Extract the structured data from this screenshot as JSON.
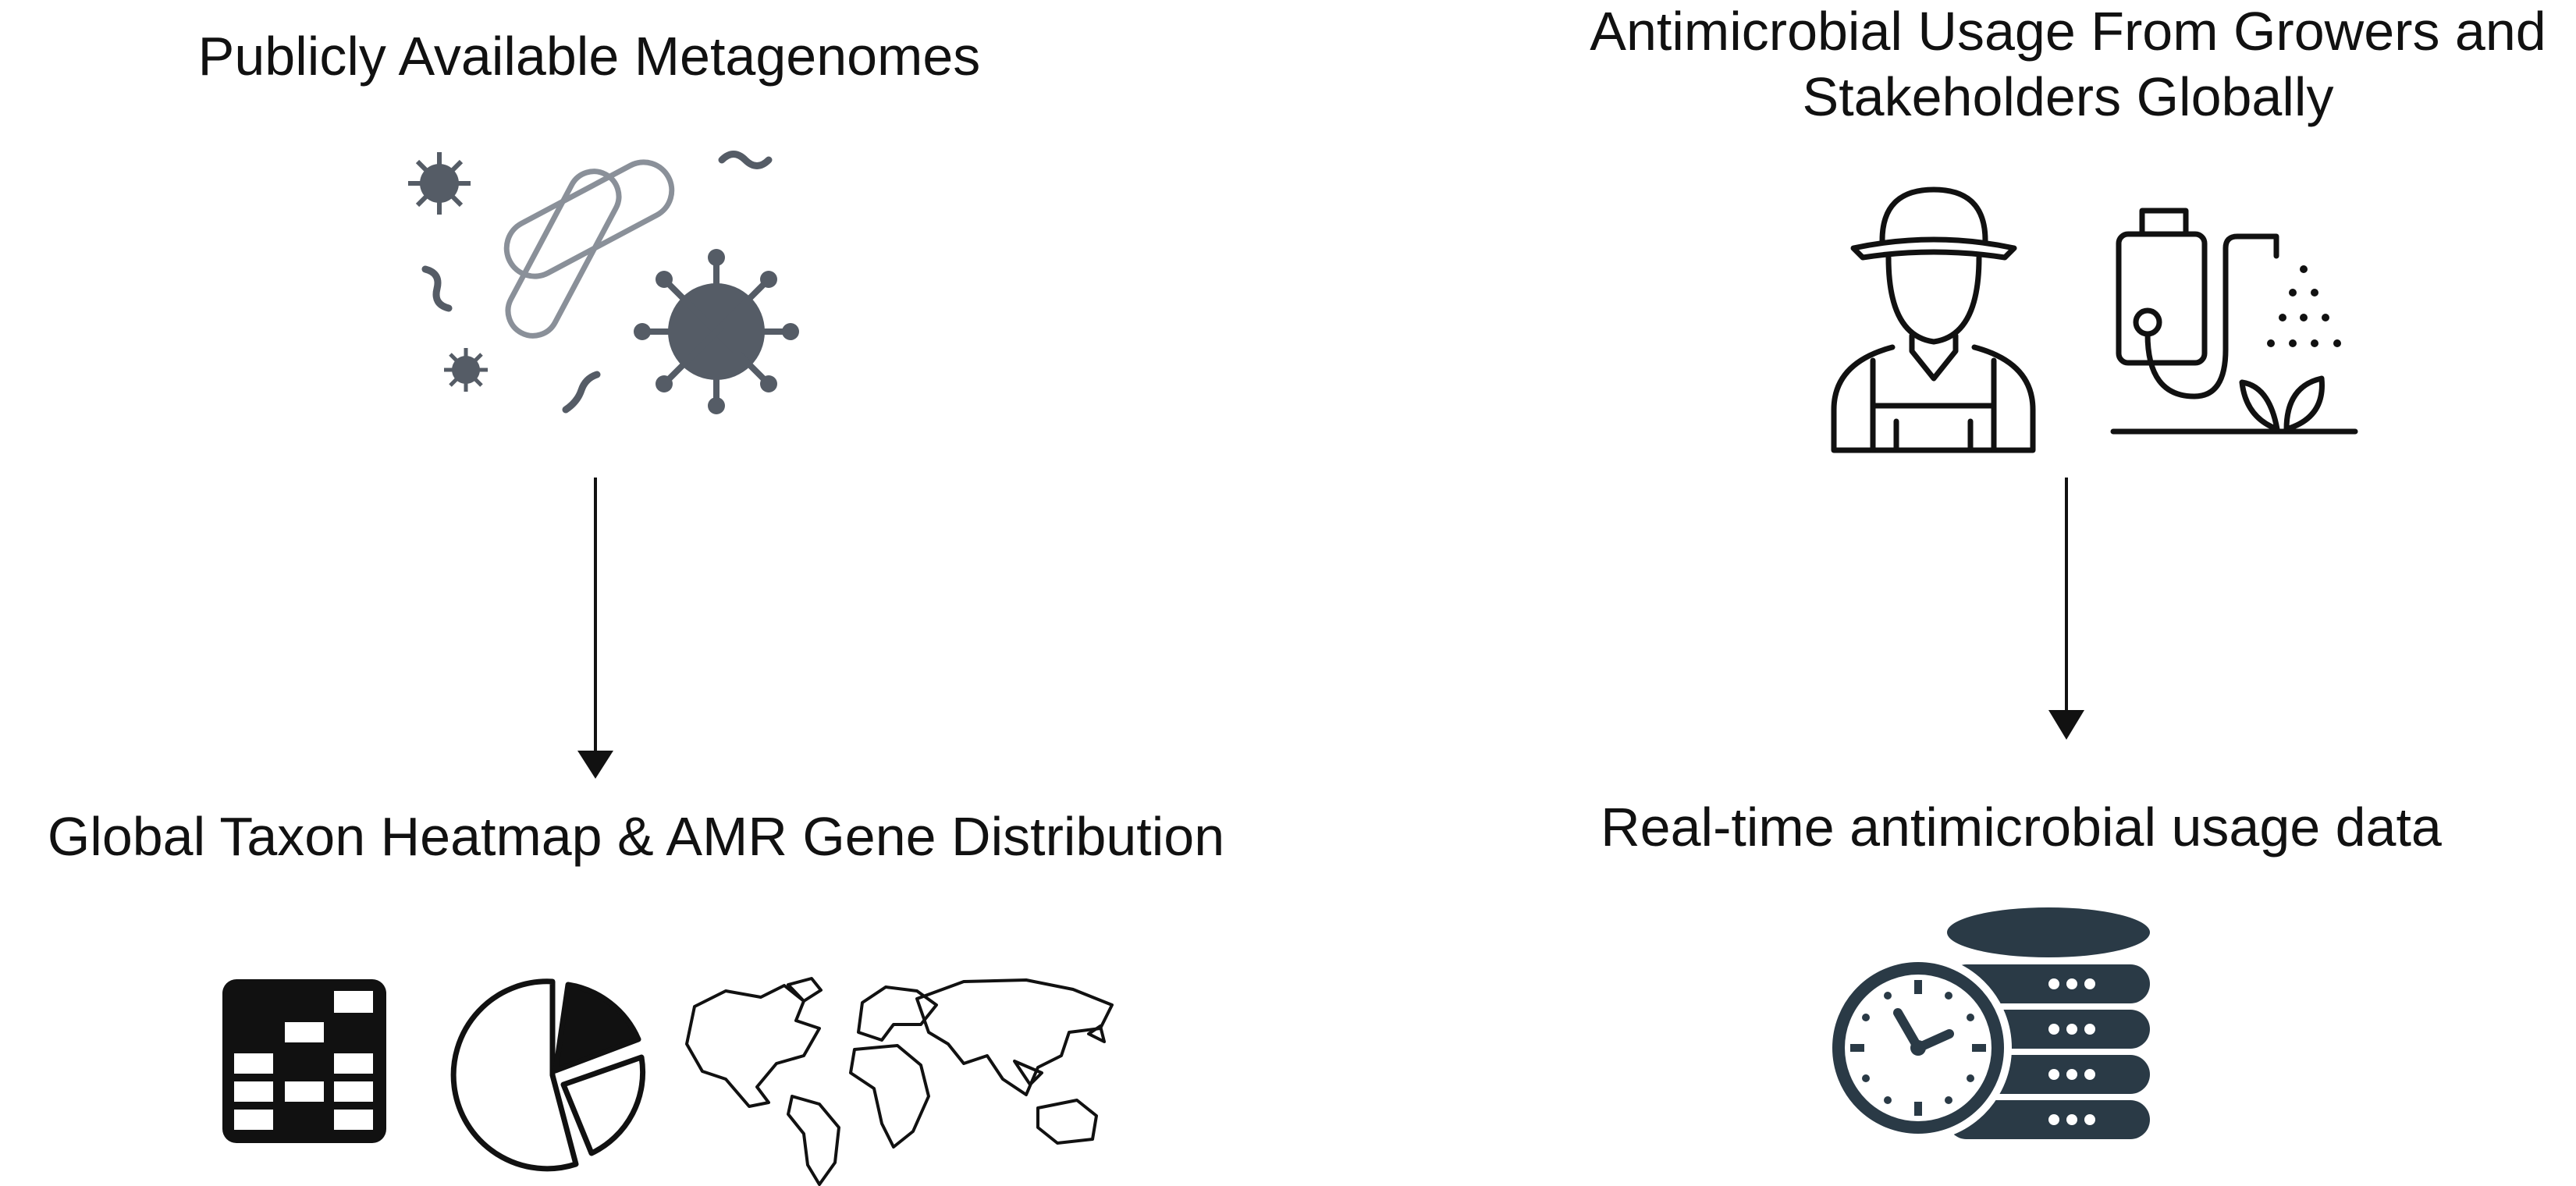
{
  "nodes": {
    "metagenomes": {
      "label": "Publicly Available Metagenomes",
      "icon": "microbes-icon"
    },
    "usage": {
      "label": "Antimicrobial Usage From Growers and Stakeholders Globally",
      "icon": "farmer-sprayer-icon"
    },
    "heatmap": {
      "label": "Global Taxon Heatmap & AMR Gene Distribution",
      "icon": "heatmap-pie-map-icons"
    },
    "realtime": {
      "label": "Real-time antimicrobial usage data",
      "icon": "clock-database-icon"
    }
  },
  "edges": [
    {
      "from": "metagenomes",
      "to": "heatmap"
    },
    {
      "from": "usage",
      "to": "realtime"
    }
  ],
  "colors": {
    "icon_dark": "#2a3a46",
    "icon_grey": "#555c66",
    "line": "#111111"
  }
}
